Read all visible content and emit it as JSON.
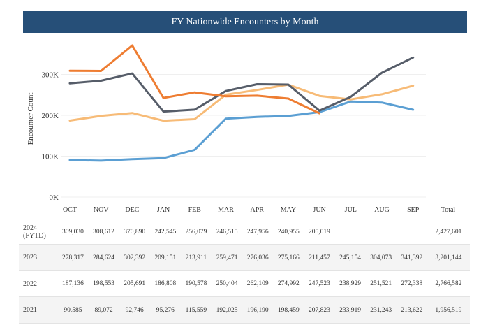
{
  "title": "FY Nationwide Encounters by Month",
  "total_header": "Total",
  "colors": {
    "header_bg": "#264f78",
    "2024 (FYTD)": "#ee7d32",
    "2023": "#565d69",
    "2022": "#f7bb77",
    "2021": "#5b9fd3"
  },
  "chart_data": {
    "type": "line",
    "ylabel": "Encounter Count",
    "xlabel": "",
    "ylim": [
      0,
      360000
    ],
    "yticks": [
      {
        "value": 0,
        "label": "0K"
      },
      {
        "value": 100000,
        "label": "100K"
      },
      {
        "value": 200000,
        "label": "200K"
      },
      {
        "value": 300000,
        "label": "300K"
      }
    ],
    "categories": [
      "OCT",
      "NOV",
      "DEC",
      "JAN",
      "FEB",
      "MAR",
      "APR",
      "MAY",
      "JUN",
      "JUL",
      "AUG",
      "SEP"
    ],
    "series": [
      {
        "name": "2024\n(FYTD)",
        "color": "#ee7d32",
        "values": [
          309030,
          308612,
          370890,
          242545,
          256079,
          246515,
          247956,
          240955,
          205019,
          null,
          null,
          null
        ],
        "labels": [
          "309,030",
          "308,612",
          "370,890",
          "242,545",
          "256,079",
          "246,515",
          "247,956",
          "240,955",
          "205,019",
          "",
          "",
          ""
        ],
        "total": "2,427,601"
      },
      {
        "name": "2023",
        "color": "#565d69",
        "values": [
          278317,
          284624,
          302392,
          209151,
          213911,
          259471,
          276036,
          275166,
          211457,
          245154,
          304073,
          341392
        ],
        "labels": [
          "278,317",
          "284,624",
          "302,392",
          "209,151",
          "213,911",
          "259,471",
          "276,036",
          "275,166",
          "211,457",
          "245,154",
          "304,073",
          "341,392"
        ],
        "total": "3,201,144"
      },
      {
        "name": "2022",
        "color": "#f7bb77",
        "values": [
          187136,
          198553,
          205691,
          186808,
          190578,
          250404,
          262109,
          274992,
          247523,
          238929,
          251521,
          272338
        ],
        "labels": [
          "187,136",
          "198,553",
          "205,691",
          "186,808",
          "190,578",
          "250,404",
          "262,109",
          "274,992",
          "247,523",
          "238,929",
          "251,521",
          "272,338"
        ],
        "total": "2,766,582"
      },
      {
        "name": "2021",
        "color": "#5b9fd3",
        "values": [
          90585,
          89072,
          92746,
          95276,
          115559,
          192025,
          196190,
          198459,
          207823,
          233919,
          231243,
          213622
        ],
        "labels": [
          "90,585",
          "89,072",
          "92,746",
          "95,276",
          "115,559",
          "192,025",
          "196,190",
          "198,459",
          "207,823",
          "233,919",
          "231,243",
          "213,622"
        ],
        "total": "1,956,519"
      }
    ]
  }
}
